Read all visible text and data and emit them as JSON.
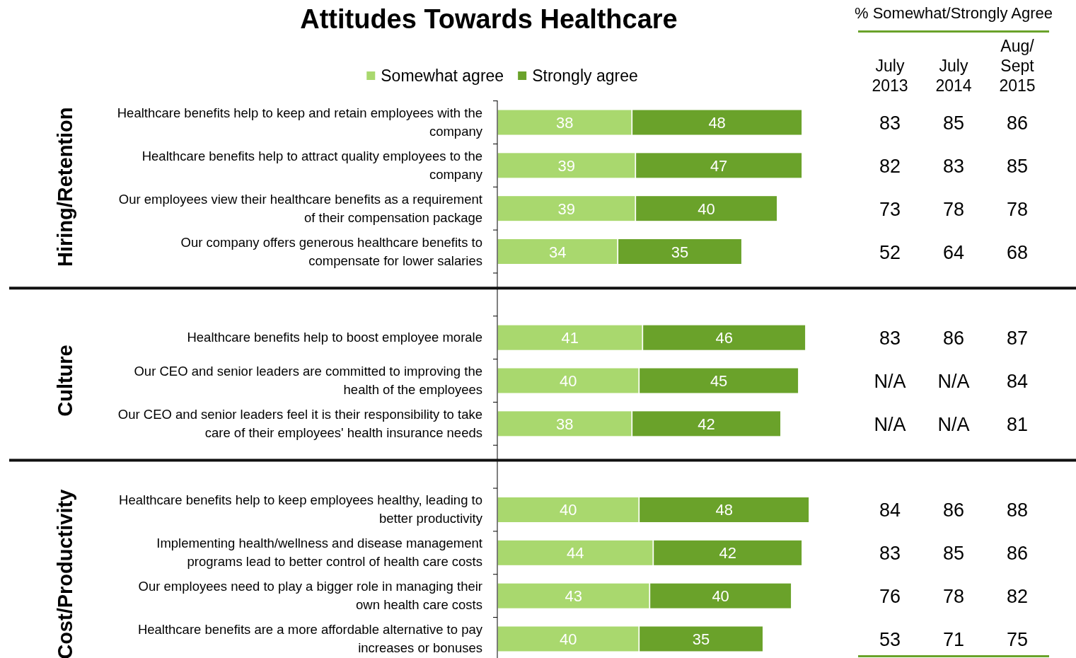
{
  "chart_data": [
    {
      "type": "bar",
      "orientation": "horizontal",
      "stacked": true,
      "title": "Attitudes Towards Healthcare",
      "legend": "top",
      "data_labels": true,
      "tick_labels": "y",
      "categories": [
        "Healthcare benefits help to keep and retain employees with the company",
        "Healthcare benefits help to attract quality employees to the company",
        "Our employees view their healthcare benefits as a requirement of their compensation package",
        "Our company offers generous healthcare benefits to compensate for lower salaries",
        null,
        "Healthcare benefits help to boost employee morale",
        "Our CEO and senior leaders are committed to improving the health of the employees",
        "Our CEO and senior leaders feel it is their responsibility to take care of their employees' health insurance needs",
        null,
        "Healthcare benefits help to keep employees healthy, leading to better productivity",
        "Implementing health/wellness and disease management programs lead to better control of health care costs",
        "Our employees need to play a bigger role in managing their own health care costs",
        "Healthcare benefits are a more affordable alternative to pay increases or bonuses"
      ],
      "series": [
        {
          "name": "Somewhat agree",
          "color": "#a9d86e",
          "values": [
            38,
            39,
            39,
            34,
            null,
            41,
            40,
            38,
            null,
            40,
            44,
            43,
            40
          ]
        },
        {
          "name": "Strongly agree",
          "color": "#6aa22a",
          "values": [
            48,
            47,
            40,
            35,
            null,
            46,
            45,
            42,
            null,
            48,
            42,
            40,
            35
          ]
        }
      ],
      "annotations": [
        "Hiring/Retention",
        "Culture",
        "Cost/Productivity"
      ]
    },
    {
      "type": "other",
      "title": "% Somewhat/Strongly Agree",
      "categories": [
        "July 2013",
        "July 2014",
        "Aug/ Sept 2015"
      ],
      "annotations": [
        "83",
        "85",
        "86",
        "82",
        "83",
        "85",
        "73",
        "78",
        "78",
        "52",
        "64",
        "68",
        "83",
        "86",
        "87",
        "N/A",
        "N/A",
        "84",
        "N/A",
        "N/A",
        "81",
        "84",
        "86",
        "88",
        "83",
        "85",
        "86",
        "76",
        "78",
        "82",
        "53",
        "71",
        "75"
      ]
    }
  ]
}
